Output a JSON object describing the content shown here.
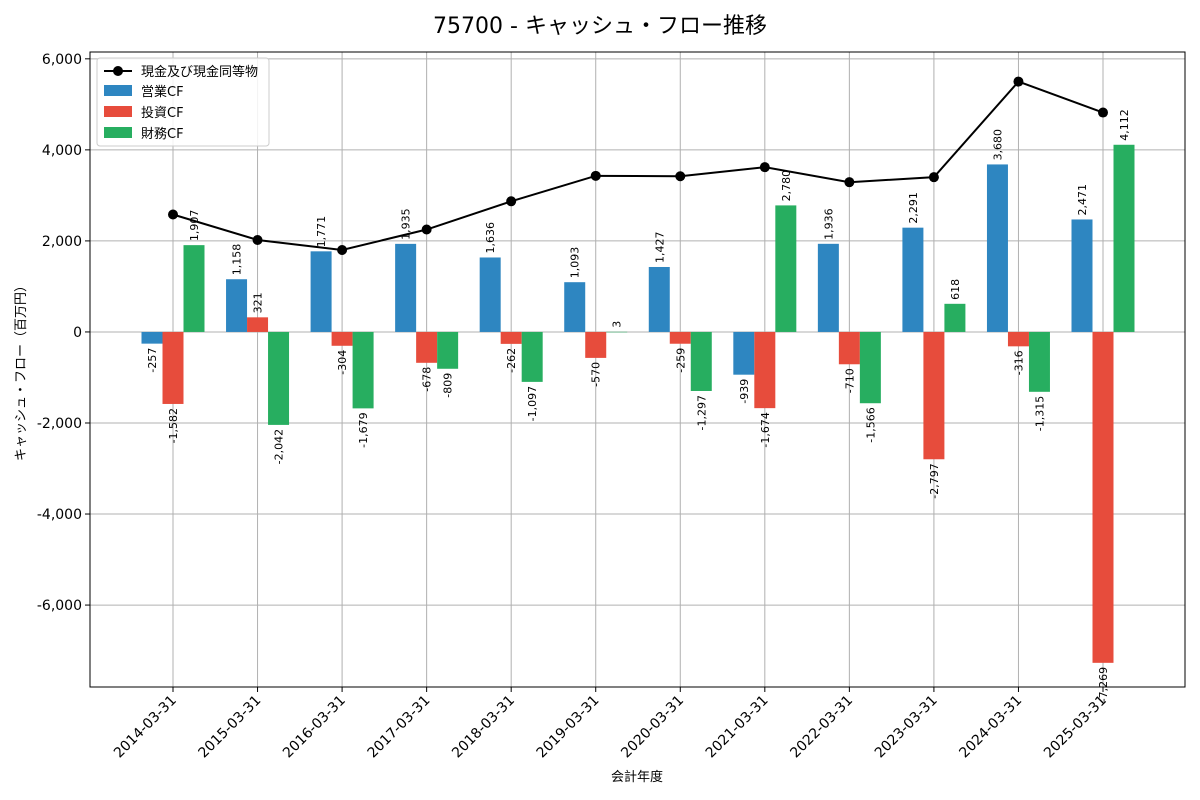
{
  "chart_data": {
    "type": "bar",
    "title": "75700 - キャッシュ・フロー推移",
    "xlabel": "会計年度",
    "ylabel": "キャッシュ・フロー（百万円）",
    "categories": [
      "2014-03-31",
      "2015-03-31",
      "2016-03-31",
      "2017-03-31",
      "2018-03-31",
      "2019-03-31",
      "2020-03-31",
      "2021-03-31",
      "2022-03-31",
      "2023-03-31",
      "2024-03-31",
      "2025-03-31"
    ],
    "ylim": [
      -7800,
      6150
    ],
    "yticks": [
      -6000,
      -4000,
      -2000,
      0,
      2000,
      4000,
      6000
    ],
    "ytick_labels": [
      "-6,000",
      "-4,000",
      "-2,000",
      "0",
      "2,000",
      "4,000",
      "6,000"
    ],
    "grid": true,
    "legend_position": "top-left",
    "series": [
      {
        "name": "営業CF",
        "color": "#2e86c1",
        "values": [
          -257,
          1158,
          1771,
          1935,
          1636,
          1093,
          1427,
          -939,
          1936,
          2291,
          3680,
          2471
        ],
        "labels": [
          "-257",
          "1,158",
          "1,771",
          "1,935",
          "1,636",
          "1,093",
          "1,427",
          "-939",
          "1,936",
          "2,291",
          "3,680",
          "2,471"
        ]
      },
      {
        "name": "投資CF",
        "color": "#e74c3c",
        "values": [
          -1582,
          321,
          -304,
          -678,
          -262,
          -570,
          -259,
          -1674,
          -710,
          -2797,
          -316,
          -7269
        ],
        "labels": [
          "-1,582",
          "321",
          "-304",
          "-678",
          "-262",
          "-570",
          "-259",
          "-1,674",
          "-710",
          "-2,797",
          "-316",
          "-7,269"
        ]
      },
      {
        "name": "財務CF",
        "color": "#27ae60",
        "values": [
          1907,
          -2042,
          -1679,
          -809,
          -1097,
          3,
          -1297,
          2780,
          -1566,
          618,
          -1315,
          4112
        ],
        "labels": [
          "1,907",
          "-2,042",
          "-1,679",
          "-809",
          "-1,097",
          "3",
          "-1,297",
          "2,780",
          "-1,566",
          "618",
          "-1,315",
          "4,112"
        ]
      }
    ],
    "line": {
      "name": "現金及び現金同等物",
      "color": "#000000",
      "values": [
        2580,
        2020,
        1800,
        2250,
        2870,
        3430,
        3420,
        3620,
        3290,
        3400,
        5500,
        4820
      ]
    }
  }
}
